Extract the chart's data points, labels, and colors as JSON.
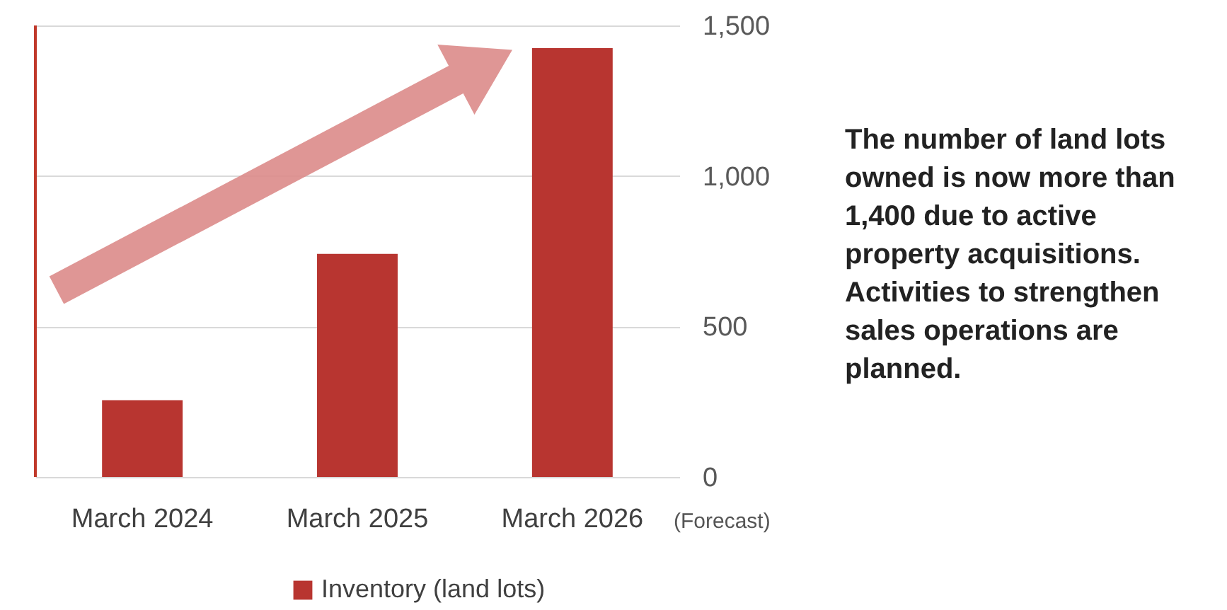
{
  "chart_data": {
    "type": "bar",
    "categories": [
      "March 2024",
      "March 2025",
      "March 2026"
    ],
    "series": [
      {
        "name": "Inventory (land lots)",
        "color": "#b83530",
        "values": [
          255,
          741,
          1425
        ]
      }
    ],
    "ylim": [
      0,
      1500
    ],
    "yticks": [
      0,
      {
        "value": 500,
        "label": "500"
      },
      {
        "value": 1000,
        "label": "1,000"
      },
      {
        "value": 1500,
        "label": "1,500"
      }
    ],
    "grid": "y",
    "legend": "bottom",
    "annotations": [
      "(Forecast)",
      "The number of land lots owned is now more than 1,400 due to active property acquisitions. Activities to strengthen sales operations are planned."
    ]
  }
}
